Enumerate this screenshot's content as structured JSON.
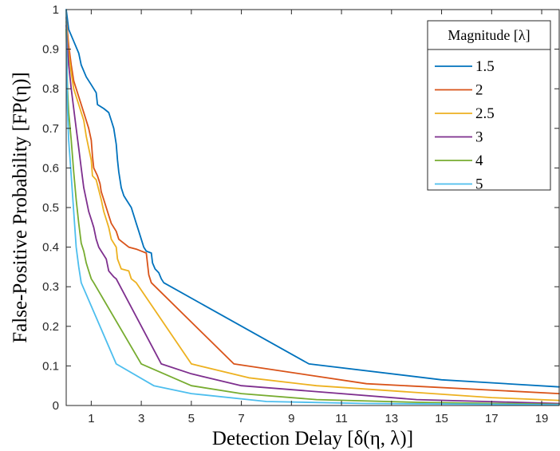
{
  "chart_data": {
    "type": "line",
    "xlabel": "Detection Delay [δ(η, λ)]",
    "ylabel": "False-Positive Probability [FP(η)]",
    "xlim": [
      0,
      19.7
    ],
    "ylim": [
      0,
      1
    ],
    "x_ticks": [
      "1",
      "3",
      "5",
      "7",
      "9",
      "11",
      "13",
      "15",
      "17",
      "19"
    ],
    "y_ticks": [
      "0",
      "0.1",
      "0.2",
      "0.3",
      "0.4",
      "0.5",
      "0.6",
      "0.7",
      "0.8",
      "0.9",
      "1"
    ],
    "grid": false,
    "legend": {
      "title": "Magnitude [λ]",
      "position": "top-right"
    },
    "series": [
      {
        "name": "1.5",
        "color": "#0072BD",
        "points": [
          [
            0,
            1
          ],
          [
            0.1,
            0.95
          ],
          [
            0.3,
            0.92
          ],
          [
            0.5,
            0.89
          ],
          [
            0.6,
            0.86
          ],
          [
            0.8,
            0.83
          ],
          [
            1.0,
            0.81
          ],
          [
            1.2,
            0.79
          ],
          [
            1.25,
            0.76
          ],
          [
            1.5,
            0.75
          ],
          [
            1.7,
            0.74
          ],
          [
            1.8,
            0.72
          ],
          [
            1.9,
            0.7
          ],
          [
            2.0,
            0.66
          ],
          [
            2.05,
            0.62
          ],
          [
            2.1,
            0.59
          ],
          [
            2.2,
            0.55
          ],
          [
            2.3,
            0.53
          ],
          [
            2.4,
            0.52
          ],
          [
            2.5,
            0.51
          ],
          [
            2.6,
            0.5
          ],
          [
            2.7,
            0.48
          ],
          [
            2.8,
            0.46
          ],
          [
            2.9,
            0.44
          ],
          [
            3.0,
            0.42
          ],
          [
            3.1,
            0.4
          ],
          [
            3.2,
            0.39
          ],
          [
            3.4,
            0.385
          ],
          [
            3.45,
            0.36
          ],
          [
            3.55,
            0.345
          ],
          [
            3.7,
            0.335
          ],
          [
            3.8,
            0.32
          ],
          [
            3.9,
            0.31
          ],
          [
            9.7,
            0.105
          ],
          [
            15,
            0.065
          ],
          [
            19.7,
            0.047
          ]
        ]
      },
      {
        "name": "2",
        "color": "#D95319",
        "points": [
          [
            0,
            0.98
          ],
          [
            0.1,
            0.91
          ],
          [
            0.2,
            0.86
          ],
          [
            0.3,
            0.82
          ],
          [
            0.5,
            0.78
          ],
          [
            0.7,
            0.74
          ],
          [
            0.9,
            0.7
          ],
          [
            1.0,
            0.67
          ],
          [
            1.05,
            0.63
          ],
          [
            1.1,
            0.6
          ],
          [
            1.25,
            0.58
          ],
          [
            1.35,
            0.56
          ],
          [
            1.4,
            0.54
          ],
          [
            1.5,
            0.52
          ],
          [
            1.6,
            0.5
          ],
          [
            1.7,
            0.48
          ],
          [
            1.8,
            0.46
          ],
          [
            2.0,
            0.44
          ],
          [
            2.1,
            0.42
          ],
          [
            2.2,
            0.415
          ],
          [
            2.5,
            0.4
          ],
          [
            2.8,
            0.395
          ],
          [
            3.0,
            0.39
          ],
          [
            3.2,
            0.385
          ],
          [
            3.3,
            0.33
          ],
          [
            3.4,
            0.31
          ],
          [
            6.7,
            0.105
          ],
          [
            12,
            0.055
          ],
          [
            19.7,
            0.03
          ]
        ]
      },
      {
        "name": "2.5",
        "color": "#EDB120",
        "points": [
          [
            0,
            0.97
          ],
          [
            0.1,
            0.89
          ],
          [
            0.2,
            0.84
          ],
          [
            0.3,
            0.8
          ],
          [
            0.5,
            0.76
          ],
          [
            0.7,
            0.72
          ],
          [
            0.8,
            0.68
          ],
          [
            0.9,
            0.65
          ],
          [
            1.0,
            0.62
          ],
          [
            1.05,
            0.58
          ],
          [
            1.2,
            0.57
          ],
          [
            1.4,
            0.52
          ],
          [
            1.5,
            0.49
          ],
          [
            1.6,
            0.47
          ],
          [
            1.7,
            0.45
          ],
          [
            1.8,
            0.42
          ],
          [
            2.0,
            0.4
          ],
          [
            2.05,
            0.37
          ],
          [
            2.2,
            0.345
          ],
          [
            2.5,
            0.34
          ],
          [
            2.6,
            0.32
          ],
          [
            2.8,
            0.31
          ],
          [
            5.0,
            0.105
          ],
          [
            7.3,
            0.07
          ],
          [
            10,
            0.05
          ],
          [
            17,
            0.02
          ],
          [
            19.7,
            0.013
          ]
        ]
      },
      {
        "name": "3",
        "color": "#7E2F8E",
        "points": [
          [
            0,
            0.96
          ],
          [
            0.1,
            0.86
          ],
          [
            0.2,
            0.8
          ],
          [
            0.3,
            0.75
          ],
          [
            0.4,
            0.7
          ],
          [
            0.5,
            0.65
          ],
          [
            0.6,
            0.6
          ],
          [
            0.7,
            0.55
          ],
          [
            0.8,
            0.52
          ],
          [
            0.9,
            0.49
          ],
          [
            1.0,
            0.47
          ],
          [
            1.1,
            0.45
          ],
          [
            1.2,
            0.42
          ],
          [
            1.3,
            0.4
          ],
          [
            1.4,
            0.39
          ],
          [
            1.6,
            0.37
          ],
          [
            1.7,
            0.34
          ],
          [
            1.9,
            0.325
          ],
          [
            2.0,
            0.32
          ],
          [
            3.8,
            0.105
          ],
          [
            5,
            0.08
          ],
          [
            7,
            0.05
          ],
          [
            10,
            0.035
          ],
          [
            14,
            0.015
          ],
          [
            19.7,
            0.005
          ]
        ]
      },
      {
        "name": "4",
        "color": "#77AC30",
        "points": [
          [
            0,
            0.95
          ],
          [
            0.05,
            0.8
          ],
          [
            0.1,
            0.74
          ],
          [
            0.2,
            0.67
          ],
          [
            0.3,
            0.59
          ],
          [
            0.4,
            0.52
          ],
          [
            0.5,
            0.46
          ],
          [
            0.6,
            0.41
          ],
          [
            0.7,
            0.39
          ],
          [
            0.8,
            0.36
          ],
          [
            0.9,
            0.34
          ],
          [
            1.0,
            0.32
          ],
          [
            1.1,
            0.31
          ],
          [
            3.0,
            0.105
          ],
          [
            5,
            0.05
          ],
          [
            7,
            0.03
          ],
          [
            10,
            0.015
          ],
          [
            14,
            0.008
          ],
          [
            19.7,
            0.003
          ]
        ]
      },
      {
        "name": "5",
        "color": "#4DBEEE",
        "points": [
          [
            0,
            1
          ],
          [
            0.05,
            0.75
          ],
          [
            0.1,
            0.67
          ],
          [
            0.2,
            0.58
          ],
          [
            0.3,
            0.49
          ],
          [
            0.4,
            0.4
          ],
          [
            0.5,
            0.35
          ],
          [
            0.6,
            0.31
          ],
          [
            2.0,
            0.105
          ],
          [
            3.5,
            0.05
          ],
          [
            5,
            0.03
          ],
          [
            8,
            0.01
          ],
          [
            12,
            0.005
          ],
          [
            19.7,
            0.002
          ]
        ]
      }
    ]
  }
}
